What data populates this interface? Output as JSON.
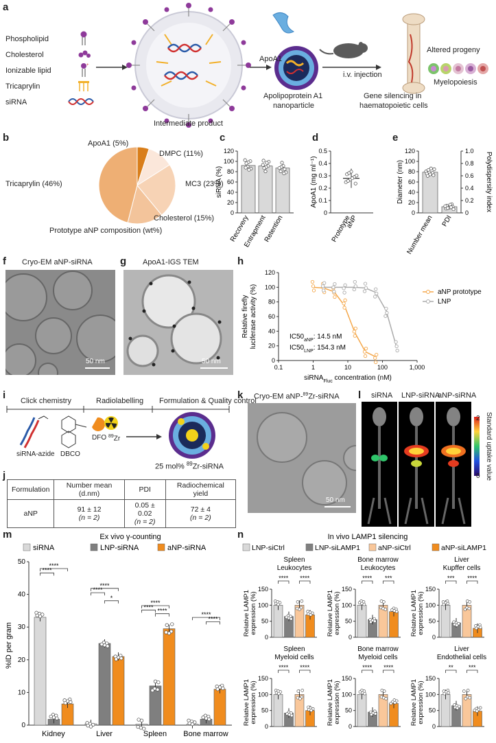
{
  "panels": {
    "a": "a",
    "b": "b",
    "c": "c",
    "d": "d",
    "e": "e",
    "f": "f",
    "g": "g",
    "h": "h",
    "i": "i",
    "j": "j",
    "k": "k",
    "l": "l",
    "m": "m",
    "n": "n"
  },
  "a": {
    "components": [
      "Phospholipid",
      "Cholesterol",
      "Ionizable lipid",
      "Tricaprylin",
      "siRNA"
    ],
    "intermediate": "Intermediate product",
    "apoa1": "ApoA1",
    "nanoparticle_l1": "Apolipoprotein A1",
    "nanoparticle_l2": "nanoparticle",
    "injection": "i.v. injection",
    "silencing_l1": "Gene silencing in",
    "silencing_l2": "haematopoietic cells",
    "progeny": "Altered progeny",
    "myelo": "Myelopoiesis"
  },
  "b": {
    "caption": "Prototype aNP composition (wt%)",
    "slices": [
      {
        "label": "ApoA1 (5%)",
        "value": 5,
        "color": "#d97e1a"
      },
      {
        "label": "DMPC (11%)",
        "value": 11,
        "color": "#fbe7da"
      },
      {
        "label": "MC3 (23%)",
        "value": 23,
        "color": "#f7d3b5"
      },
      {
        "label": "Cholesterol (15%)",
        "value": 15,
        "color": "#f3c49b"
      },
      {
        "label": "Tricaprylin (46%)",
        "value": 46,
        "color": "#eeaf74"
      }
    ]
  },
  "c": {
    "ylabel": "siRNA (%)",
    "ticks": [
      "0",
      "20",
      "40",
      "60",
      "80",
      "100",
      "120"
    ],
    "categories": [
      "Recovery",
      "Entrapment",
      "Retention"
    ]
  },
  "d": {
    "ylabel": "ApoA1 (mg ml⁻¹)",
    "ticks": [
      "0",
      "0.1",
      "0.2",
      "0.3",
      "0.4",
      "0.5"
    ],
    "category_l1": "Prototype",
    "category_l2": "aNP"
  },
  "e": {
    "ylabel": "Diameter (nm)",
    "ylabel2": "Polydispersity index",
    "ticks": [
      "0",
      "20",
      "40",
      "60",
      "80",
      "100",
      "120"
    ],
    "ticks2": [
      "0",
      "0.2",
      "0.4",
      "0.6",
      "0.8",
      "1.0"
    ],
    "categories": [
      "Number mean",
      "PDI"
    ]
  },
  "f": {
    "title": "Cryo-EM aNP-siRNA",
    "scale": "50 nm"
  },
  "g": {
    "title": "ApoA1-IGS TEM",
    "scale": "50 nm"
  },
  "h": {
    "ylabel_l1": "Relative firefly",
    "ylabel_l2": "luciferase activity (%)",
    "xlabel": "siRNA",
    "xlabel_sub": "Fluc",
    "xlabel_tail": " concentration (nM)",
    "yticks": [
      "0",
      "20",
      "40",
      "60",
      "80",
      "100",
      "120"
    ],
    "xticks": [
      "0.1",
      "1",
      "10",
      "100",
      "1,000"
    ],
    "legend": [
      "aNP prototype",
      "LNP"
    ],
    "ic50_anp": "IC50",
    "ic50_anp_sub": "aNP",
    "ic50_anp_val": ": 14.5 nM",
    "ic50_lnp": "IC50",
    "ic50_lnp_sub": "LNP",
    "ic50_lnp_val": ": 154.3 nM"
  },
  "i": {
    "steps": [
      "Click chemistry",
      "Radiolabelling",
      "Formulation & Quality control"
    ],
    "azide": "siRNA-azide",
    "dbco": "DBCO",
    "dfo": "DFO",
    "zr": "89",
    "zr_el": "Zr",
    "product_pre": "25 mol% ",
    "product_sup": "89",
    "product_post": "Zr-siRNA"
  },
  "j": {
    "headers": [
      "Formulation",
      "Number mean (d.nm)",
      "PDI",
      "Radiochemical yield"
    ],
    "row": [
      "aNP",
      "91 ± 12",
      "0.05 ± 0.02",
      "72 ± 4"
    ],
    "n": "(n = 2)"
  },
  "k": {
    "title_pre": "Cryo-EM aNP-",
    "title_sup": "89",
    "title_post": "Zr-siRNA",
    "scale": "50 nm"
  },
  "l": {
    "labels": [
      "siRNA",
      "LNP-siRNA",
      "aNP-siRNA"
    ],
    "scale_label": "Standard uptake value",
    "scale_max": "2",
    "scale_min": "0"
  },
  "m": {
    "title": "Ex vivo γ-counting",
    "legend": [
      "siRNA",
      "LNP-siRNA",
      "aNP-siRNA"
    ],
    "ylabel": "%ID per gram",
    "yticks": [
      "0",
      "10",
      "20",
      "30",
      "40",
      "50"
    ],
    "categories": [
      "Kidney",
      "Liver",
      "Spleen",
      "Bone marrow"
    ],
    "sig": [
      "****",
      "****",
      "****",
      "****",
      "*",
      "****",
      "****",
      "****",
      "****",
      "****"
    ]
  },
  "n": {
    "title": "In vivo LAMP1 silencing",
    "legend": [
      "LNP-siCtrl",
      "LNP-siLAMP1",
      "aNP-siCtrl",
      "aNP-siLAMP1"
    ],
    "ylabel_l1": "Relative LAMP1",
    "ylabel_l2": "expression (%)",
    "yticks": [
      "0",
      "50",
      "100",
      "150"
    ],
    "subplots": [
      {
        "t1": "Spleen",
        "t2": "Leukocytes",
        "sig": [
          "****",
          "****"
        ]
      },
      {
        "t1": "Bone marrow",
        "t2": "Leukocytes",
        "sig": [
          "****",
          "***"
        ]
      },
      {
        "t1": "Liver",
        "t2": "Kupffer cells",
        "sig": [
          "***",
          "****"
        ]
      },
      {
        "t1": "Spleen",
        "t2": "Myeloid cells",
        "sig": [
          "****",
          "****"
        ]
      },
      {
        "t1": "Bone marrow",
        "t2": "Myeloid cells",
        "sig": [
          "****",
          "****"
        ]
      },
      {
        "t1": "Liver",
        "t2": "Endothelial cells",
        "sig": [
          "**",
          "***"
        ]
      }
    ]
  },
  "colors": {
    "siRNA": "#d9d9d9",
    "LNP": "#7f7f7f",
    "aNP": "#f08c1e",
    "LNPctrl": "#d9d9d9",
    "LNPkd": "#7f7f7f",
    "aNPctrl": "#f9c79a",
    "aNPkd": "#f08c1e",
    "LNPline": "#aaaaaa"
  },
  "chart_data": [
    {
      "type": "pie",
      "title": "Prototype aNP composition (wt%)",
      "categories": [
        "ApoA1",
        "DMPC",
        "MC3",
        "Cholesterol",
        "Tricaprylin"
      ],
      "values": [
        5,
        11,
        23,
        15,
        46
      ]
    },
    {
      "type": "bar",
      "categories": [
        "Recovery",
        "Entrapment",
        "Retention"
      ],
      "values": [
        92,
        91,
        87
      ],
      "ylabel": "siRNA (%)",
      "ylim": [
        0,
        120
      ]
    },
    {
      "type": "scatter",
      "categories": [
        "Prototype aNP"
      ],
      "values": [
        0.28
      ],
      "ylabel": "ApoA1 (mg ml⁻¹)",
      "ylim": [
        0,
        0.5
      ]
    },
    {
      "type": "bar",
      "categories": [
        "Number mean",
        "PDI"
      ],
      "values": [
        79,
        0.1
      ],
      "ylabel": "Diameter (nm)",
      "ylim": [
        0,
        120
      ]
    },
    {
      "type": "line",
      "xlabel": "siRNAFluc concentration (nM)",
      "ylabel": "Relative firefly luciferase activity (%)",
      "xscale": "log",
      "xlim": [
        0.1,
        1000
      ],
      "ylim": [
        0,
        120
      ],
      "series": [
        {
          "name": "aNP prototype",
          "x": [
            1,
            2,
            4,
            8,
            16,
            32,
            64
          ],
          "y": [
            100,
            99,
            94,
            75,
            38,
            12,
            5
          ]
        },
        {
          "name": "LNP",
          "x": [
            2,
            4,
            8,
            16,
            32,
            64,
            128,
            256
          ],
          "y": [
            100,
            100,
            100,
            100,
            99,
            93,
            68,
            18
          ]
        }
      ]
    },
    {
      "type": "bar",
      "title": "Ex vivo γ-counting",
      "categories": [
        "Kidney",
        "Liver",
        "Spleen",
        "Bone marrow"
      ],
      "ylabel": "%ID per gram",
      "ylim": [
        0,
        50
      ],
      "series": [
        {
          "name": "siRNA",
          "values": [
            33,
            0.4,
            0.3,
            0.3
          ]
        },
        {
          "name": "LNP-siRNA",
          "values": [
            1.8,
            25,
            12,
            1.8
          ]
        },
        {
          "name": "aNP-siRNA",
          "values": [
            6.5,
            21,
            29.5,
            11
          ]
        }
      ]
    },
    {
      "type": "bar",
      "title": "In vivo LAMP1 silencing",
      "categories": [
        "Spleen Leukocytes",
        "Bone marrow Leukocytes",
        "Liver Kupffer cells",
        "Spleen Myeloid cells",
        "Bone marrow Myeloid cells",
        "Liver Endothelial cells"
      ],
      "ylabel": "Relative LAMP1 expression (%)",
      "ylim": [
        0,
        150
      ],
      "series": [
        {
          "name": "LNP-siCtrl",
          "values": [
            100,
            100,
            100,
            100,
            100,
            100
          ]
        },
        {
          "name": "LNP-siLAMP1",
          "values": [
            65,
            55,
            45,
            42,
            45,
            65
          ]
        },
        {
          "name": "aNP-siCtrl",
          "values": [
            100,
            100,
            100,
            100,
            100,
            100
          ]
        },
        {
          "name": "aNP-siLAMP1",
          "values": [
            70,
            80,
            28,
            50,
            72,
            48
          ]
        }
      ]
    }
  ]
}
